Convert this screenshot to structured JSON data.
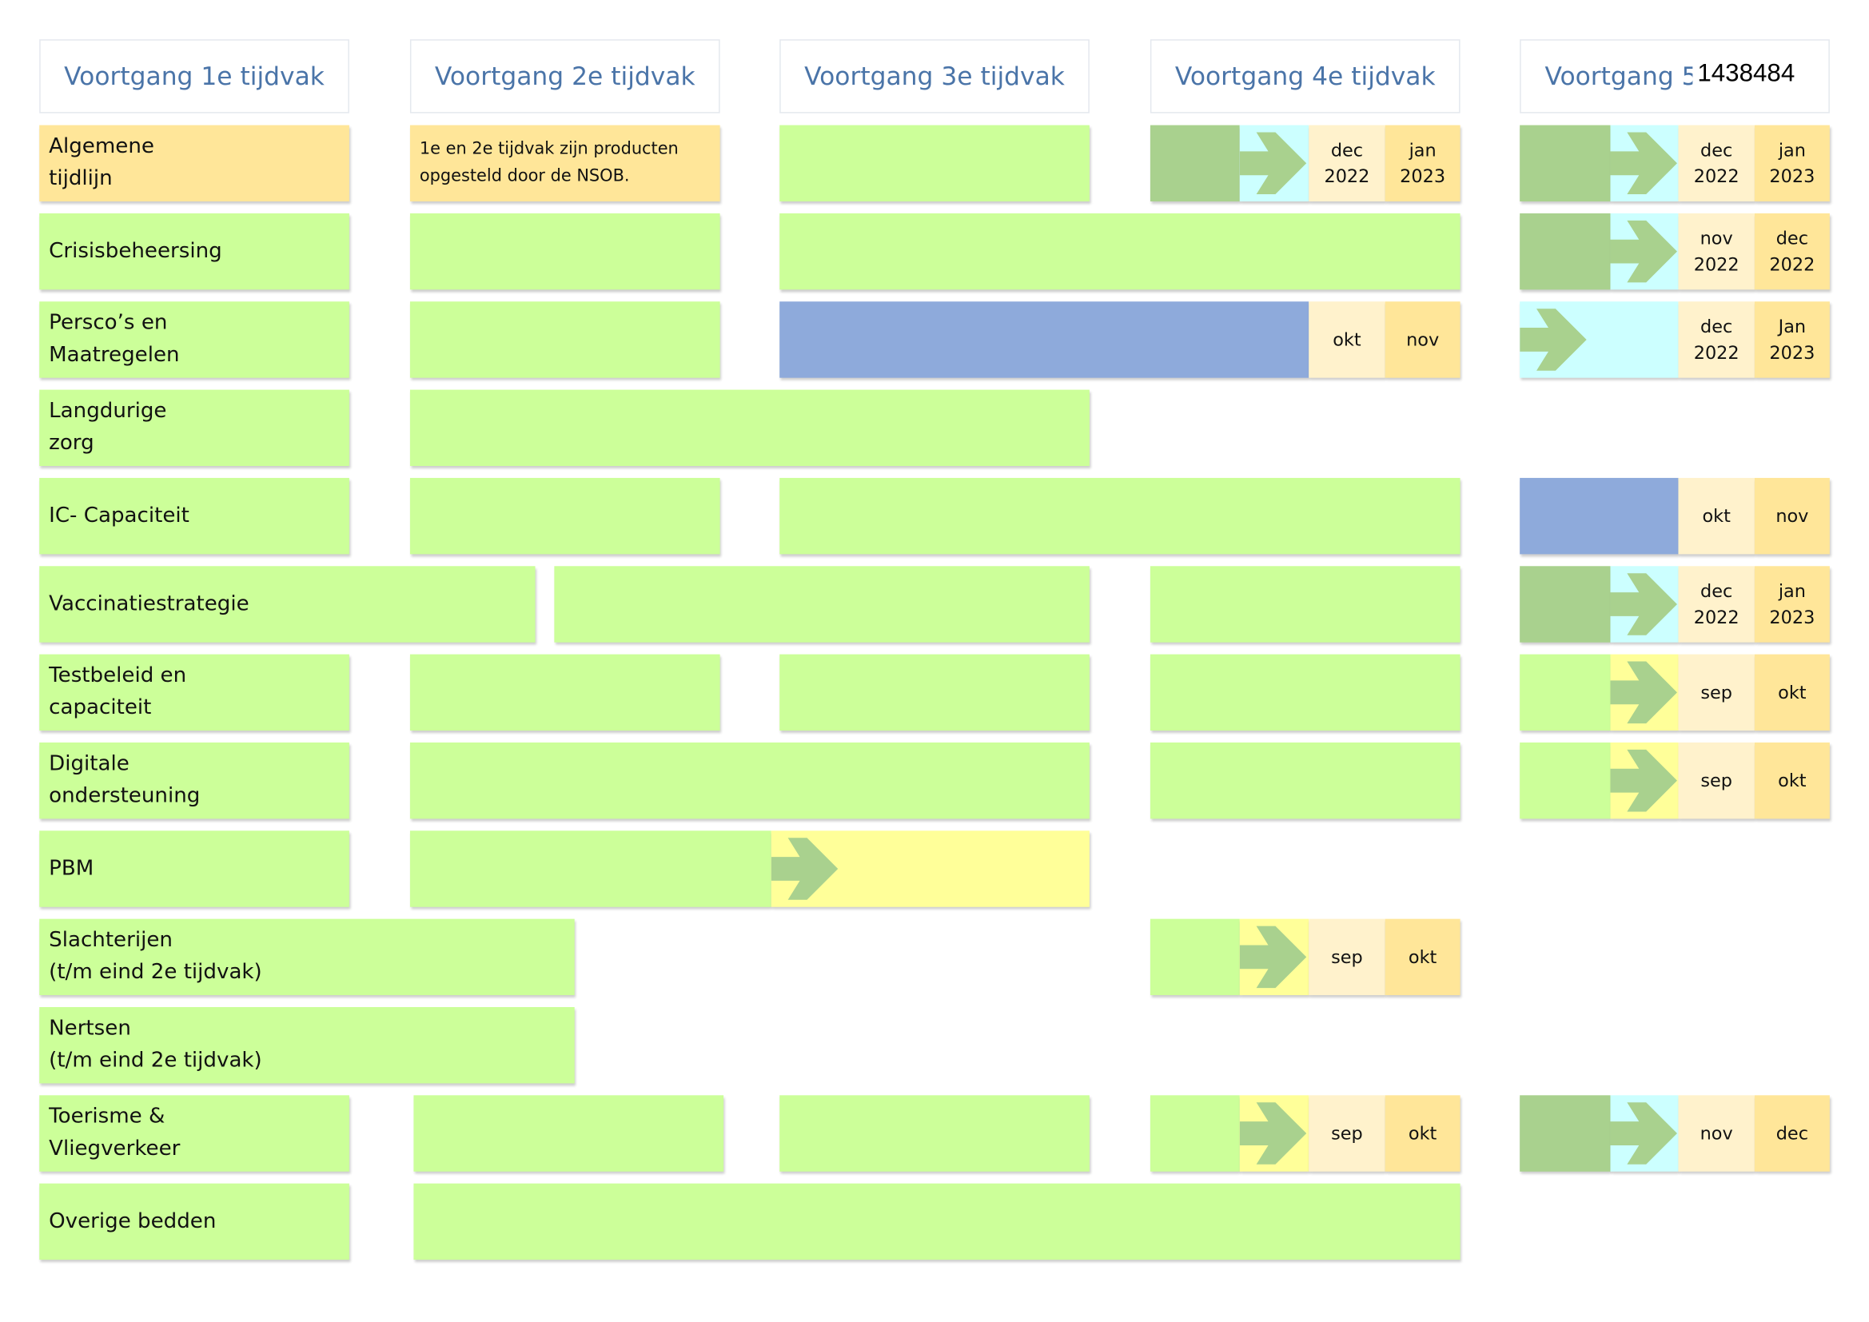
{
  "headers": [
    "Voortgang 1e tijdvak",
    "Voortgang 2e tijdvak",
    "Voortgang 3e tijdvak",
    "Voortgang 4e tijdvak",
    "Voortgang 5"
  ],
  "stamp": "1438484",
  "rows": [
    {
      "label": "Algemene\ntijdlijn",
      "cells": [
        "1e en 2e tijdvak zijn producten opgesteld door de NSOB.",
        "dec 2022",
        "jan 2023",
        "dec 2022",
        "jan 2023"
      ]
    },
    {
      "label": "Crisisbeheersing",
      "cells": [
        "nov 2022",
        "dec 2022"
      ]
    },
    {
      "label": "Persco’s en\nMaatregelen",
      "cells": [
        "okt",
        "nov",
        "dec 2022",
        "Jan 2023"
      ]
    },
    {
      "label": "Langdurige\nzorg",
      "cells": []
    },
    {
      "label": "IC- Capaciteit",
      "cells": [
        "okt",
        "nov"
      ]
    },
    {
      "label": "Vaccinatiestrategie",
      "cells": [
        "dec 2022",
        "jan 2023"
      ]
    },
    {
      "label": "Testbeleid en\ncapaciteit",
      "cells": [
        "sep",
        "okt"
      ]
    },
    {
      "label": "Digitale\nondersteuning",
      "cells": [
        "sep",
        "okt"
      ]
    },
    {
      "label": "PBM",
      "cells": []
    },
    {
      "label": "Slachterijen\n(t/m eind 2e tijdvak)",
      "cells": [
        "sep",
        "okt"
      ]
    },
    {
      "label": "Nertsen\n(t/m eind 2e tijdvak)",
      "cells": []
    },
    {
      "label": "Toerisme &\nVliegverkeer",
      "cells": [
        "sep",
        "okt",
        "nov",
        "dec"
      ]
    },
    {
      "label": "Overige bedden",
      "cells": []
    }
  ]
}
